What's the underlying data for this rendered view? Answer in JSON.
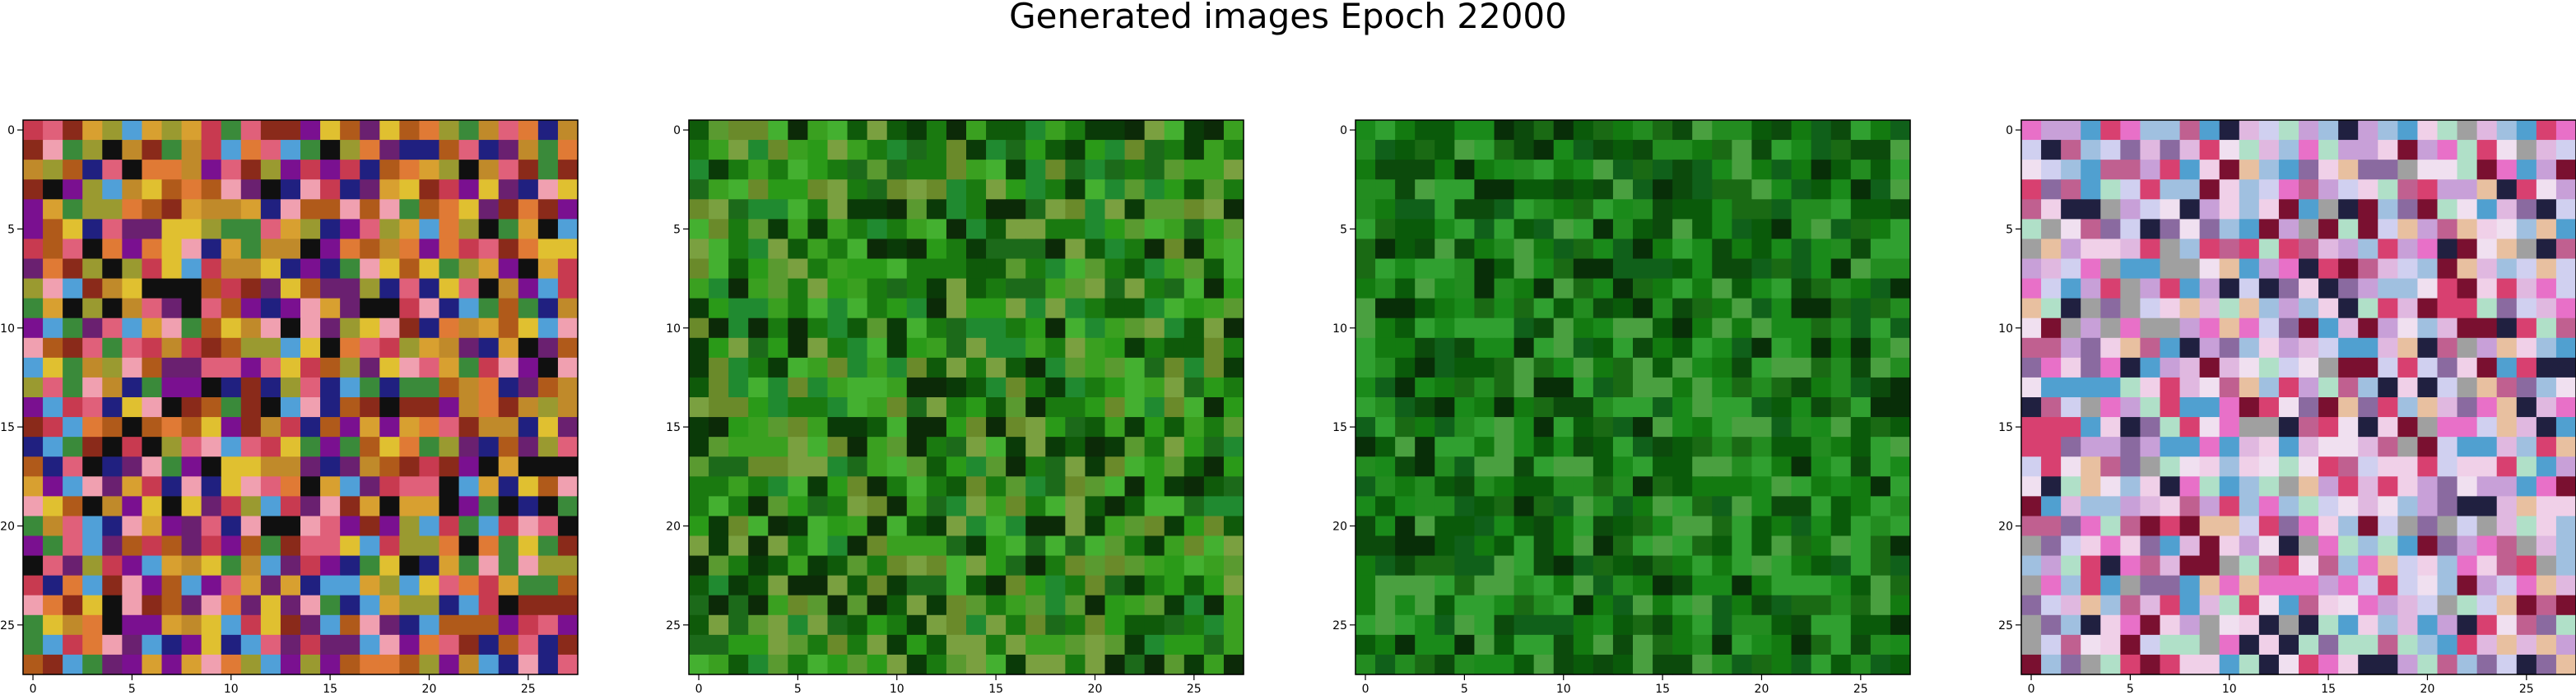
{
  "figure": {
    "title": "Generated images Epoch 22000"
  },
  "chart_data": [
    {
      "type": "heatmap",
      "size": 28,
      "xlim": [
        -0.5,
        27.5
      ],
      "ylim": [
        27.5,
        -0.5
      ],
      "xticks": [
        0,
        5,
        10,
        15,
        20,
        25
      ],
      "yticks": [
        0,
        5,
        10,
        15,
        20,
        25
      ],
      "palette": [
        "#c08a2a",
        "#d8a030",
        "#e07a35",
        "#c83a50",
        "#e0607a",
        "#8a2a1a",
        "#b05a1a",
        "#6a2070",
        "#7a1090",
        "#202080",
        "#e0c030",
        "#9a9a30",
        "#3a8a3a",
        "#50a0d8",
        "#f0a0b0",
        "#101010"
      ],
      "seed": 11,
      "tint": "#d08a3a"
    },
    {
      "type": "heatmap",
      "size": 28,
      "xlim": [
        -0.5,
        27.5
      ],
      "ylim": [
        27.5,
        -0.5
      ],
      "xticks": [
        0,
        5,
        10,
        15,
        20,
        25
      ],
      "yticks": [
        0,
        5,
        10,
        15,
        20,
        25
      ],
      "palette": [
        "#1a7a10",
        "#2a9a18",
        "#0f5a0a",
        "#3aa020",
        "#5a9a30",
        "#0a3a08",
        "#6a8a2a",
        "#208a30",
        "#44b030",
        "#0c2a08",
        "#7aa040",
        "#1c6a1a"
      ],
      "seed": 23,
      "tint": "#1f7a12"
    },
    {
      "type": "heatmap",
      "size": 28,
      "xlim": [
        -0.5,
        27.5
      ],
      "ylim": [
        27.5,
        -0.5
      ],
      "xticks": [
        0,
        5,
        10,
        15,
        20,
        25
      ],
      "yticks": [
        0,
        5,
        10,
        15,
        20,
        25
      ],
      "palette": [
        "#0a5a0a",
        "#137a10",
        "#1a8a1a",
        "#0c4a0c",
        "#238c20",
        "#082e08",
        "#30a030",
        "#1a6a14",
        "#4aa040",
        "#10601a"
      ],
      "seed": 37,
      "tint": "#0e6a0e"
    },
    {
      "type": "heatmap",
      "size": 28,
      "xlim": [
        -0.5,
        27.5
      ],
      "ylim": [
        27.5,
        -0.5
      ],
      "xticks": [
        0,
        5,
        10,
        15,
        20,
        25
      ],
      "yticks": [
        0,
        5,
        10,
        15,
        20,
        25
      ],
      "palette": [
        "#e0b8e0",
        "#c8a0d8",
        "#f0d0e8",
        "#a0c0e0",
        "#e870c8",
        "#b0e0c8",
        "#d0d0f0",
        "#c06090",
        "#8a6aa0",
        "#f0e0f0",
        "#50a0d0",
        "#d84070",
        "#7a1030",
        "#202040",
        "#a0a0a0",
        "#e8c0a0"
      ],
      "seed": 53,
      "tint": "#d0b0d8"
    }
  ]
}
